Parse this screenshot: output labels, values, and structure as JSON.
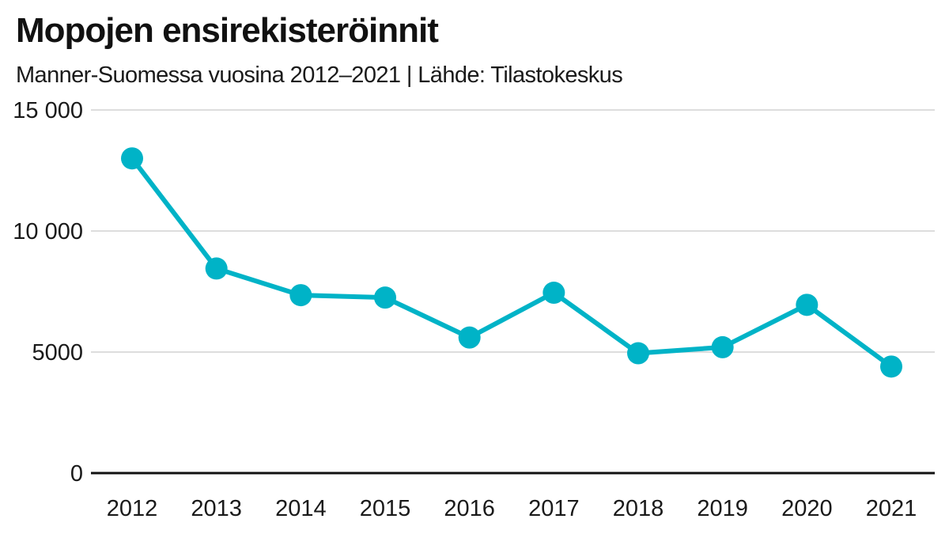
{
  "chart_data": {
    "type": "line",
    "title": "Mopojen ensirekisteröinnit",
    "subtitle": "Manner-Suomessa vuosina 2012–2021 | Lähde: Tilastokeskus",
    "xlabel": "",
    "ylabel": "",
    "categories": [
      "2012",
      "2013",
      "2014",
      "2015",
      "2016",
      "2017",
      "2018",
      "2019",
      "2020",
      "2021"
    ],
    "series": [
      {
        "values": [
          13000,
          8450,
          7350,
          7250,
          5600,
          7450,
          4950,
          5200,
          6950,
          4400
        ]
      }
    ],
    "ylim": [
      0,
      15000
    ],
    "yticks": [
      0,
      5000,
      10000,
      15000
    ],
    "ytick_labels": [
      "0",
      "5000",
      "10 000",
      "15 000"
    ],
    "grid": true,
    "legend": "none",
    "colors": {
      "line": "#00b3c7",
      "grid": "#dddddd",
      "baseline": "#111111"
    }
  }
}
